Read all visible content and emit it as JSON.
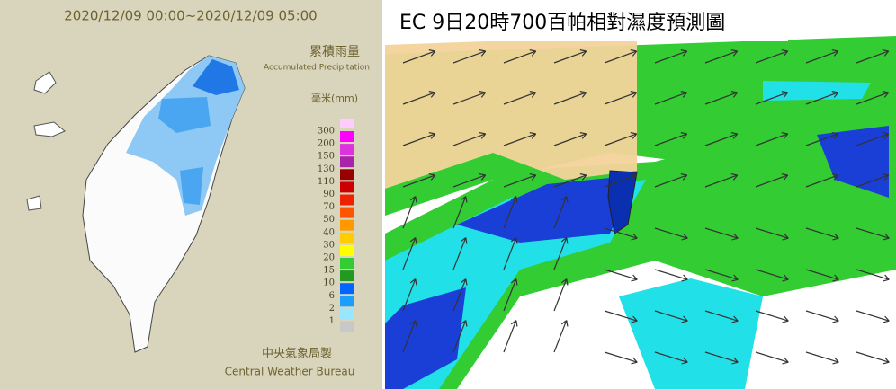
{
  "left_panel": {
    "time_range": "2020/12/09 00:00~2020/12/09 05:00",
    "title_zh": "累積雨量",
    "title_en": "Accumulated Precipitation",
    "unit": "毫米(mm)",
    "legend": [
      {
        "label": "300",
        "color": "#ff00ff"
      },
      {
        "label": "200",
        "color": "#dd33dd"
      },
      {
        "label": "150",
        "color": "#aa22aa"
      },
      {
        "label": "130",
        "color": "#990000"
      },
      {
        "label": "110",
        "color": "#cc0000"
      },
      {
        "label": "90",
        "color": "#ee2200"
      },
      {
        "label": "70",
        "color": "#ff5500"
      },
      {
        "label": "50",
        "color": "#ff9900"
      },
      {
        "label": "40",
        "color": "#ffcc00"
      },
      {
        "label": "30",
        "color": "#ffff00"
      },
      {
        "label": "20",
        "color": "#33cc33"
      },
      {
        "label": "15",
        "color": "#229922"
      },
      {
        "label": "10",
        "color": "#0066ff"
      },
      {
        "label": "6",
        "color": "#1a9fff"
      },
      {
        "label": "2",
        "color": "#99e6ff"
      },
      {
        "label": "1",
        "color": "#c8c8c8"
      }
    ],
    "credit_zh": "中央氣象局製",
    "credit_en": "Central Weather Bureau"
  },
  "right_panel": {
    "title": "EC 9日20時700百帕相對濕度預測圖"
  }
}
